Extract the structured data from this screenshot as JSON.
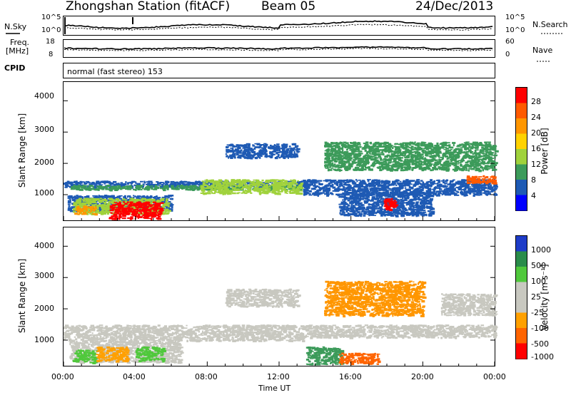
{
  "header": {
    "station": "Zhongshan Station (fitACF)",
    "beam": "Beam 05",
    "date": "24/Dec/2013"
  },
  "top_panels": {
    "nsky_label": "N.Sky",
    "nsky_ticks": [
      "10^5",
      "10^0"
    ],
    "nsearch_label": "N.Search",
    "nsearch_ticks": [
      "10^5",
      "10^0"
    ],
    "freq_label_1": "Freq.",
    "freq_label_2": "[MHz]",
    "freq_ticks": [
      "18",
      "8"
    ],
    "nave_label": "Nave",
    "nave_ticks": [
      "60",
      "0"
    ],
    "cpid_label": "CPID",
    "cpid_text": "normal (fast stereo) 153"
  },
  "axes": {
    "ylabel": "Slant Range [km]",
    "yticks": [
      "4000",
      "3000",
      "2000",
      "1000"
    ],
    "xticks": [
      "00:00",
      "04:00",
      "08:00",
      "12:00",
      "16:00",
      "20:00",
      "00:00"
    ],
    "xlabel": "Time UT"
  },
  "colorbars": {
    "power": {
      "label": "Power [dB]",
      "ticks": [
        "28",
        "24",
        "20",
        "16",
        "12",
        "8",
        "4"
      ],
      "colors": [
        "#ff0000",
        "#ff5a00",
        "#ff9600",
        "#ffd200",
        "#a0d23c",
        "#3c9b5a",
        "#1e5ab4",
        "#0000ff"
      ]
    },
    "velocity": {
      "label": "Velocity [m s⁻¹]",
      "ticks": [
        "1000",
        "500",
        "100",
        "25",
        "-25",
        "-100",
        "-500",
        "-1000"
      ],
      "colors": [
        "#1e3cc8",
        "#2a8c4a",
        "#50c83c",
        "#c8c8c0",
        "#c8c8c0",
        "#ffa000",
        "#ff6400",
        "#ff0000"
      ]
    }
  },
  "chart_data": [
    {
      "type": "heatmap",
      "title": "Power",
      "xlabel": "Time UT",
      "ylabel": "Slant Range [km]",
      "xlim_hours": [
        0,
        24
      ],
      "ylim_km": [
        180,
        4600
      ],
      "regions": [
        {
          "t0": 0.0,
          "t1": 13.5,
          "r0": 1250,
          "r1": 1450,
          "color": "#1e5ab4"
        },
        {
          "t0": 0.3,
          "t1": 13.3,
          "r0": 1180,
          "r1": 1320,
          "color": "#3c9b5a"
        },
        {
          "t0": 0.2,
          "t1": 6.0,
          "r0": 500,
          "r1": 1000,
          "color": "#1e5ab4"
        },
        {
          "t0": 0.5,
          "t1": 5.8,
          "r0": 400,
          "r1": 900,
          "color": "#a0d23c"
        },
        {
          "t0": 2.5,
          "t1": 5.4,
          "r0": 250,
          "r1": 800,
          "color": "#ff0000"
        },
        {
          "t0": 0.6,
          "t1": 1.8,
          "r0": 400,
          "r1": 650,
          "color": "#ff9600"
        },
        {
          "t0": 7.6,
          "t1": 13.2,
          "r0": 1050,
          "r1": 1500,
          "color": "#a0d23c"
        },
        {
          "t0": 9.0,
          "t1": 13.0,
          "r0": 2200,
          "r1": 2650,
          "color": "#1e5ab4"
        },
        {
          "t0": 13.3,
          "t1": 24.0,
          "r0": 1000,
          "r1": 1500,
          "color": "#1e5ab4"
        },
        {
          "t0": 14.5,
          "t1": 24.0,
          "r0": 1800,
          "r1": 2700,
          "color": "#3c9b5a"
        },
        {
          "t0": 15.3,
          "t1": 20.5,
          "r0": 350,
          "r1": 1100,
          "color": "#1e5ab4"
        },
        {
          "t0": 17.8,
          "t1": 18.5,
          "r0": 550,
          "r1": 900,
          "color": "#ff0000"
        },
        {
          "t0": 22.4,
          "t1": 24.0,
          "r0": 1380,
          "r1": 1620,
          "color": "#ff5a00"
        }
      ]
    },
    {
      "type": "heatmap",
      "title": "Velocity",
      "xlabel": "Time UT",
      "ylabel": "Slant Range [km]",
      "xlim_hours": [
        0,
        24
      ],
      "ylim_km": [
        180,
        4600
      ],
      "regions": [
        {
          "t0": 0.0,
          "t1": 13.3,
          "r0": 1000,
          "r1": 1500,
          "color": "#c8c8c0"
        },
        {
          "t0": 0.3,
          "t1": 6.5,
          "r0": 300,
          "r1": 1000,
          "color": "#c8c8c0"
        },
        {
          "t0": 0.5,
          "t1": 1.8,
          "r0": 300,
          "r1": 700,
          "color": "#50c83c"
        },
        {
          "t0": 1.8,
          "t1": 3.5,
          "r0": 350,
          "r1": 800,
          "color": "#ffa000"
        },
        {
          "t0": 4.0,
          "t1": 5.5,
          "r0": 350,
          "r1": 800,
          "color": "#50c83c"
        },
        {
          "t0": 9.0,
          "t1": 13.0,
          "r0": 2100,
          "r1": 2650,
          "color": "#c8c8c0"
        },
        {
          "t0": 13.3,
          "t1": 24.0,
          "r0": 1100,
          "r1": 1500,
          "color": "#c8c8c0"
        },
        {
          "t0": 14.5,
          "t1": 20.0,
          "r0": 1800,
          "r1": 2900,
          "color": "#ff9600"
        },
        {
          "t0": 13.5,
          "t1": 15.5,
          "r0": 250,
          "r1": 800,
          "color": "#3c9b5a"
        },
        {
          "t0": 15.3,
          "t1": 17.5,
          "r0": 250,
          "r1": 600,
          "color": "#ff6400"
        },
        {
          "t0": 21.0,
          "t1": 24.0,
          "r0": 1800,
          "r1": 2500,
          "color": "#c8c8c0"
        }
      ]
    }
  ]
}
